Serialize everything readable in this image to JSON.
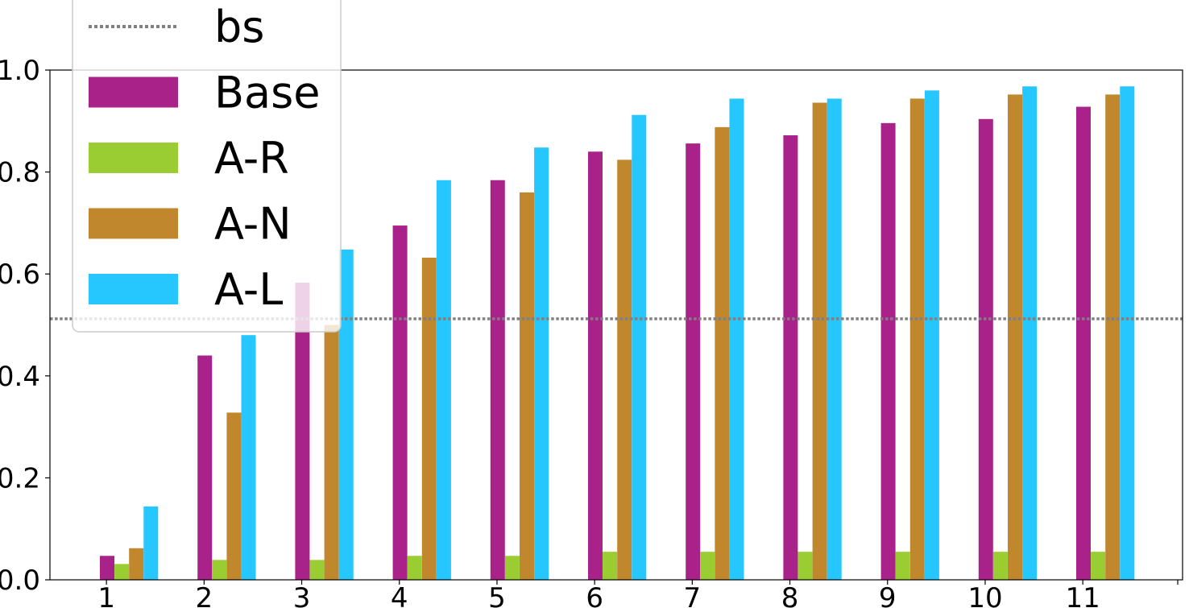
{
  "chart_data": {
    "type": "bar",
    "categories": [
      "1",
      "2",
      "3",
      "4",
      "5",
      "6",
      "7",
      "8",
      "9",
      "10",
      "11"
    ],
    "series": [
      {
        "name": "Base",
        "color": "#a9228a",
        "values": [
          0.047,
          0.44,
          0.583,
          0.695,
          0.784,
          0.84,
          0.856,
          0.872,
          0.896,
          0.904,
          0.928
        ]
      },
      {
        "name": "A-R",
        "color": "#9acd32",
        "values": [
          0.031,
          0.039,
          0.039,
          0.047,
          0.047,
          0.055,
          0.055,
          0.055,
          0.055,
          0.055,
          0.055
        ]
      },
      {
        "name": "A-N",
        "color": "#c0872c",
        "values": [
          0.062,
          0.328,
          0.5,
          0.632,
          0.76,
          0.824,
          0.888,
          0.936,
          0.944,
          0.952,
          0.952
        ]
      },
      {
        "name": "A-L",
        "color": "#26c6ff",
        "values": [
          0.144,
          0.48,
          0.648,
          0.784,
          0.848,
          0.912,
          0.944,
          0.944,
          0.96,
          0.968,
          0.968
        ]
      }
    ],
    "baseline": {
      "name": "bs",
      "value": 0.512,
      "style": "dotted",
      "color": "#808080"
    },
    "title": "",
    "xlabel": "",
    "ylabel": "",
    "ylim": [
      0.0,
      1.0
    ],
    "yticks": [
      "0.0",
      "0.2",
      "0.4",
      "0.6",
      "0.8",
      "1.0"
    ],
    "grid": false,
    "legend_position": "top-left"
  }
}
